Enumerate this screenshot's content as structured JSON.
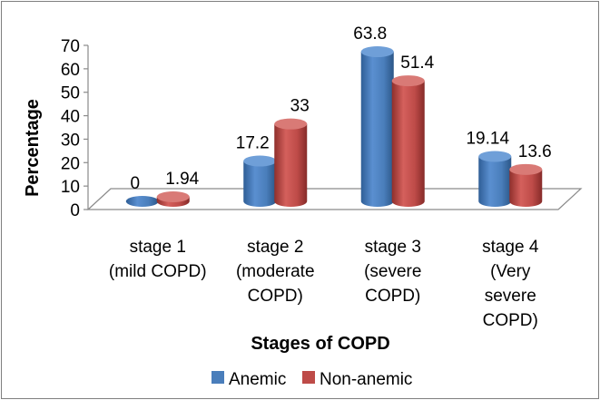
{
  "chart_data": {
    "type": "bar",
    "style": "3d-cylinder",
    "categories": [
      [
        "stage 1",
        "(mild COPD)"
      ],
      [
        "stage 2",
        "(moderate",
        "COPD)"
      ],
      [
        "stage 3",
        "(severe",
        "COPD)"
      ],
      [
        "stage 4",
        "(Very",
        "severe",
        "COPD)"
      ]
    ],
    "series": [
      {
        "name": "Anemic",
        "color": "#4a7ebb",
        "values": [
          0,
          17.2,
          63.8,
          19.14
        ],
        "labels": [
          "0",
          "17.2",
          "63.8",
          "19.14"
        ]
      },
      {
        "name": "Non-anemic",
        "color": "#be4b48",
        "values": [
          1.94,
          33,
          51.4,
          13.6
        ],
        "labels": [
          "1.94",
          "33",
          "51.4",
          "13.6"
        ]
      }
    ],
    "xlabel": "Stages of COPD",
    "ylabel": "Percentage",
    "ylim": [
      0,
      70
    ],
    "yticks": [
      "0",
      "10",
      "20",
      "30",
      "40",
      "50",
      "60",
      "70"
    ],
    "grid": false,
    "legend": "bottom"
  }
}
